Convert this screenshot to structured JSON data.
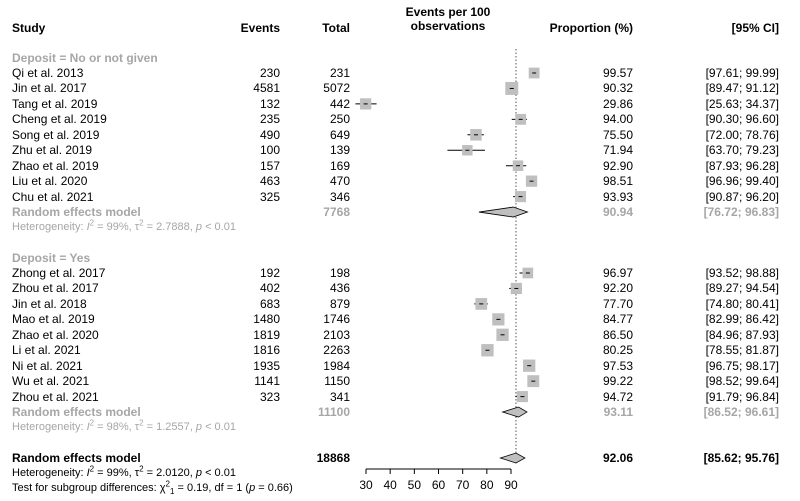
{
  "chart_data": {
    "type": "forest",
    "headers": {
      "study": "Study",
      "events": "Events",
      "total": "Total",
      "plot_line1": "Events per 100",
      "plot_line2": "observations",
      "proportion": "Proportion (%)",
      "ci": "[95% CI]"
    },
    "axis": {
      "xmin": 30,
      "xmax": 90,
      "ticks": [
        "30",
        "40",
        "50",
        "60",
        "70",
        "80",
        "90"
      ],
      "reference_line": 92.06
    },
    "groups": [
      {
        "label": "Deposit = No or not given",
        "studies": [
          {
            "study": "Qi et al. 2013",
            "events": "230",
            "total": "231",
            "proportion": "99.57",
            "ci": "[97.61; 99.99]",
            "est": 99.57,
            "lo": 97.61,
            "hi": 99.99
          },
          {
            "study": "Jin et al. 2017",
            "events": "4581",
            "total": "5072",
            "proportion": "90.32",
            "ci": "[89.47; 91.12]",
            "est": 90.32,
            "lo": 89.47,
            "hi": 91.12
          },
          {
            "study": "Tang et al. 2019",
            "events": "132",
            "total": "442",
            "proportion": "29.86",
            "ci": "[25.63; 34.37]",
            "est": 29.86,
            "lo": 25.63,
            "hi": 34.37
          },
          {
            "study": "Cheng et al. 2019",
            "events": "235",
            "total": "250",
            "proportion": "94.00",
            "ci": "[90.30; 96.60]",
            "est": 94.0,
            "lo": 90.3,
            "hi": 96.6
          },
          {
            "study": "Song et al. 2019",
            "events": "490",
            "total": "649",
            "proportion": "75.50",
            "ci": "[72.00; 78.76]",
            "est": 75.5,
            "lo": 72.0,
            "hi": 78.76
          },
          {
            "study": "Zhu et al. 2019",
            "events": "100",
            "total": "139",
            "proportion": "71.94",
            "ci": "[63.70; 79.23]",
            "est": 71.94,
            "lo": 63.7,
            "hi": 79.23
          },
          {
            "study": "Zhao et al. 2019",
            "events": "157",
            "total": "169",
            "proportion": "92.90",
            "ci": "[87.93; 96.28]",
            "est": 92.9,
            "lo": 87.93,
            "hi": 96.28
          },
          {
            "study": "Liu et al. 2020",
            "events": "463",
            "total": "470",
            "proportion": "98.51",
            "ci": "[96.96; 99.40]",
            "est": 98.51,
            "lo": 96.96,
            "hi": 99.4
          },
          {
            "study": "Chu et al. 2021",
            "events": "325",
            "total": "346",
            "proportion": "93.93",
            "ci": "[90.87; 96.20]",
            "est": 93.93,
            "lo": 90.87,
            "hi": 96.2
          }
        ],
        "model": {
          "label": "Random effects model",
          "total": "7768",
          "proportion": "90.94",
          "ci": "[76.72; 96.83]",
          "est": 90.94,
          "lo": 76.72,
          "hi": 96.83
        },
        "heterogeneity": "Heterogeneity: I² = 99%, τ² = 2.7888, p < 0.01"
      },
      {
        "label": "Deposit = Yes",
        "studies": [
          {
            "study": "Zhong et al. 2017",
            "events": "192",
            "total": "198",
            "proportion": "96.97",
            "ci": "[93.52; 98.88]",
            "est": 96.97,
            "lo": 93.52,
            "hi": 98.88
          },
          {
            "study": "Zhou et al. 2017",
            "events": "402",
            "total": "436",
            "proportion": "92.20",
            "ci": "[89.27; 94.54]",
            "est": 92.2,
            "lo": 89.27,
            "hi": 94.54
          },
          {
            "study": "Jin et al. 2018",
            "events": "683",
            "total": "879",
            "proportion": "77.70",
            "ci": "[74.80; 80.41]",
            "est": 77.7,
            "lo": 74.8,
            "hi": 80.41
          },
          {
            "study": "Mao et al. 2019",
            "events": "1480",
            "total": "1746",
            "proportion": "84.77",
            "ci": "[82.99; 86.42]",
            "est": 84.77,
            "lo": 82.99,
            "hi": 86.42
          },
          {
            "study": "Zhao et al. 2020",
            "events": "1819",
            "total": "2103",
            "proportion": "86.50",
            "ci": "[84.96; 87.93]",
            "est": 86.5,
            "lo": 84.96,
            "hi": 87.93
          },
          {
            "study": "Li et al. 2021",
            "events": "1816",
            "total": "2263",
            "proportion": "80.25",
            "ci": "[78.55; 81.87]",
            "est": 80.25,
            "lo": 78.55,
            "hi": 81.87
          },
          {
            "study": "Ni et al. 2021",
            "events": "1935",
            "total": "1984",
            "proportion": "97.53",
            "ci": "[96.75; 98.17]",
            "est": 97.53,
            "lo": 96.75,
            "hi": 98.17
          },
          {
            "study": "Wu et al. 2021",
            "events": "1141",
            "total": "1150",
            "proportion": "99.22",
            "ci": "[98.52; 99.64]",
            "est": 99.22,
            "lo": 98.52,
            "hi": 99.64
          },
          {
            "study": "Zhou et al. 2021",
            "events": "323",
            "total": "341",
            "proportion": "94.72",
            "ci": "[91.79; 96.84]",
            "est": 94.72,
            "lo": 91.79,
            "hi": 96.84
          }
        ],
        "model": {
          "label": "Random effects model",
          "total": "11100",
          "proportion": "93.11",
          "ci": "[86.52; 96.61]",
          "est": 93.11,
          "lo": 86.52,
          "hi": 96.61
        },
        "heterogeneity": "Heterogeneity: I² = 98%, τ² = 1.2557, p < 0.01"
      }
    ],
    "overall": {
      "label": "Random effects model",
      "total": "18868",
      "proportion": "92.06",
      "ci": "[85.62; 95.76]",
      "est": 92.06,
      "lo": 85.62,
      "hi": 95.76
    },
    "overall_heterogeneity": "Heterogeneity: I² = 99%, τ² = 2.0120, p < 0.01",
    "subgroup_test": "Test for subgroup differences: χ²₁ = 0.19, df = 1 (p = 0.66)",
    "colors": {
      "text": "#000000",
      "group_text": "#a6a6a6",
      "box": "#bfbfbf",
      "diamond_fill": "#bfbfbf",
      "dotted_line": "#555555"
    }
  }
}
